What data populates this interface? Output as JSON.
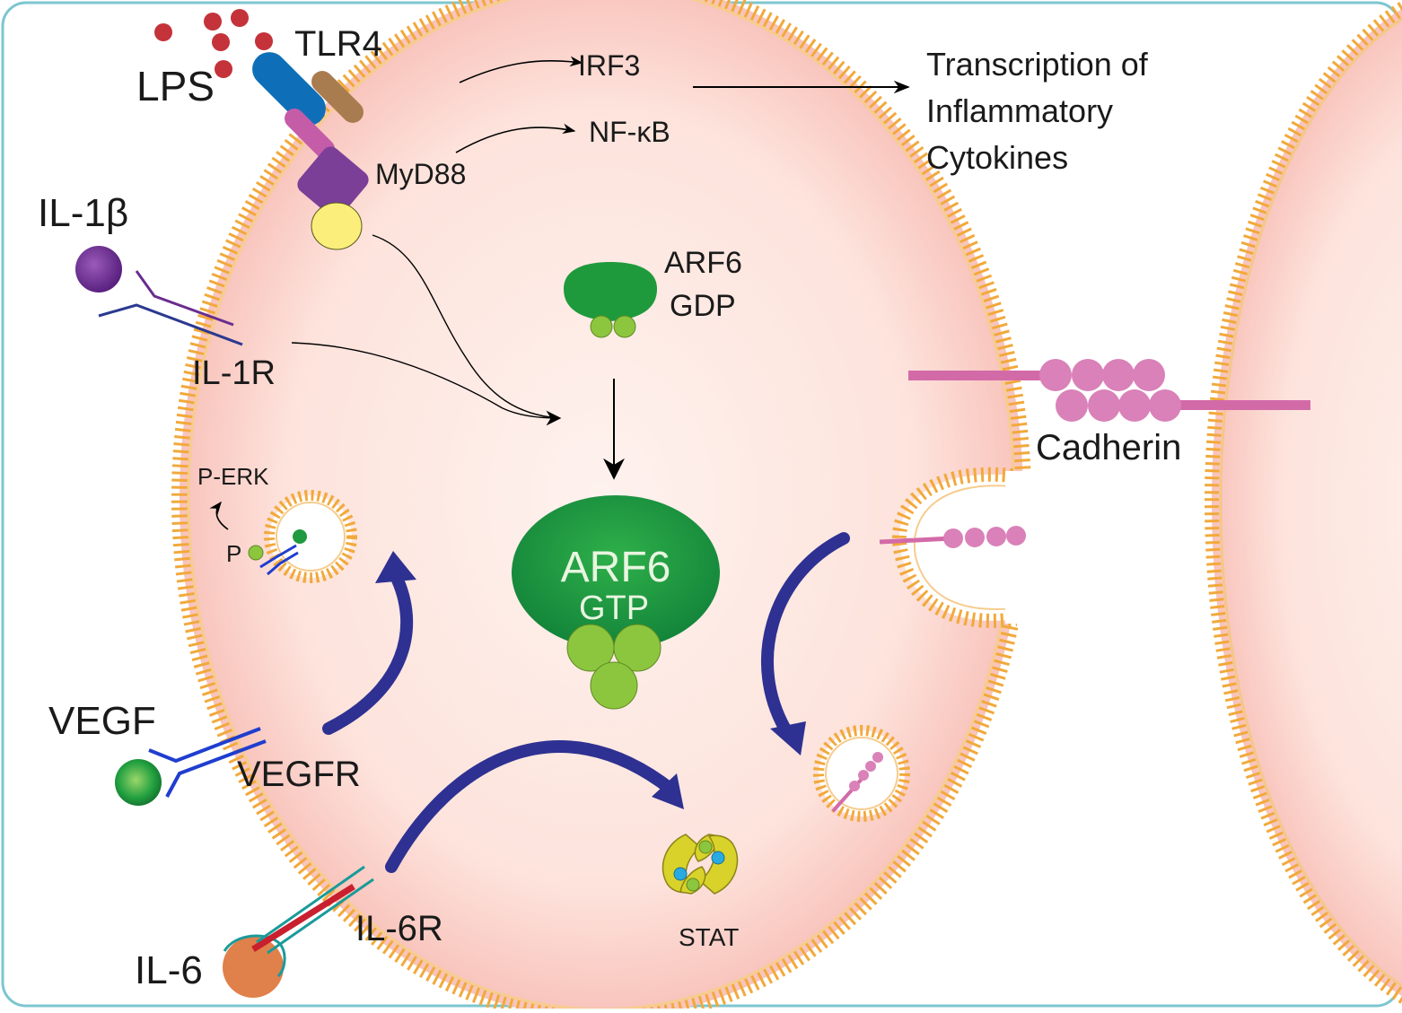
{
  "labels": {
    "lps": "LPS",
    "tlr4": "TLR4",
    "myd88": "MyD88",
    "irf3": "IRF3",
    "nfkb": "NF-κB",
    "transcription_line1": "Transcription of",
    "transcription_line2": "Inflammatory",
    "transcription_line3": "Cytokines",
    "il1b": "IL-1β",
    "il1r": "IL-1R",
    "arf6_gdp_line1": "ARF6",
    "arf6_gdp_line2": "GDP",
    "arf6_gtp_line1": "ARF6",
    "arf6_gtp_line2": "GTP",
    "cadherin": "Cadherin",
    "perk": "P-ERK",
    "p": "P",
    "vegf": "VEGF",
    "vegfr": "VEGFR",
    "il6": "IL-6",
    "il6r": "IL-6R",
    "stat": "STAT"
  },
  "colors": {
    "frame": "#7cc6cf",
    "cytoplasm": "#fde3dc",
    "membrane": "#f2a93b",
    "arf6": "#1e9a3c",
    "arf6_subunit": "#8cc63f",
    "tlr4_blue": "#0e6fb8",
    "tlr4_brown": "#a97c50",
    "myd88_purple": "#7b3f98",
    "myd88_pink": "#c45ca8",
    "yellow_adaptor": "#fbee7a",
    "lps_red": "#c4323a",
    "il1b_purple": "#6a2c8f",
    "il1r_navy": "#2b3990",
    "vegfr_blue": "#1f3ecf",
    "vegf_green": "#1f9a3e",
    "il6_orange": "#e0804a",
    "il6r_teal": "#1a9a9a",
    "il6r_red": "#c8202e",
    "cadherin_pink": "#d36aa8",
    "big_arrow_navy": "#2e3192",
    "stat_yellow": "#d9d22a"
  }
}
